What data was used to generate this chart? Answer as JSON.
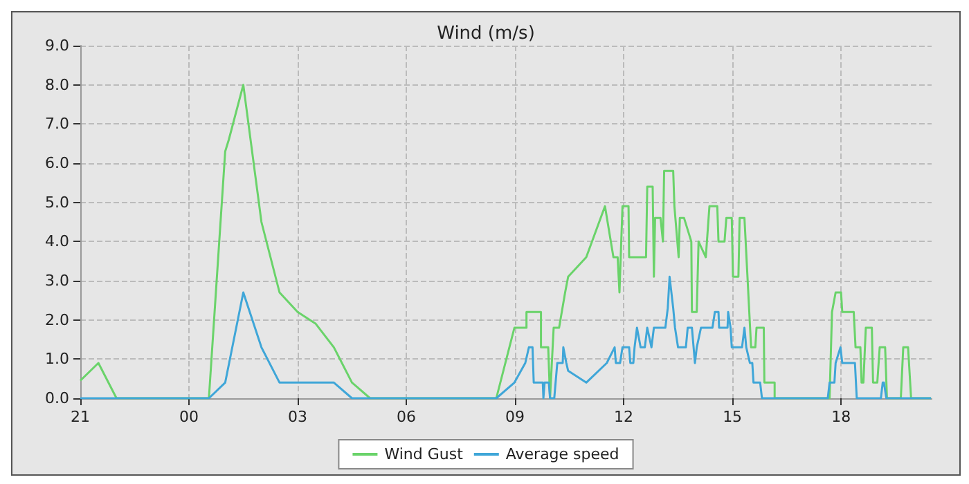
{
  "chart_data": {
    "type": "line",
    "title": "Wind (m/s)",
    "xlim": [
      "--01-01T21:00",
      "--01-02T20:30"
    ],
    "ylim": [
      0,
      9
    ],
    "xticks": [
      {
        "value": "--01-01T21:00",
        "label": "21"
      },
      {
        "value": "--01-02T00:00",
        "label": "00"
      },
      {
        "value": "--01-02T03:00",
        "label": "03"
      },
      {
        "value": "--01-02T06:00",
        "label": "06"
      },
      {
        "value": "--01-02T09:00",
        "label": "09"
      },
      {
        "value": "--01-02T12:00",
        "label": "12"
      },
      {
        "value": "--01-02T15:00",
        "label": "15"
      },
      {
        "value": "--01-02T18:00",
        "label": "18"
      }
    ],
    "yticks": [
      {
        "value": 0,
        "label": "0.0"
      },
      {
        "value": 1,
        "label": "1.0"
      },
      {
        "value": 2,
        "label": "2.0"
      },
      {
        "value": 3,
        "label": "3.0"
      },
      {
        "value": 4,
        "label": "4.0"
      },
      {
        "value": 5,
        "label": "5.0"
      },
      {
        "value": 6,
        "label": "6.0"
      },
      {
        "value": 7,
        "label": "7.0"
      },
      {
        "value": 8,
        "label": "8.0"
      },
      {
        "value": 9,
        "label": "9.0"
      }
    ],
    "grid": true,
    "legend": "bottom",
    "marker": "none",
    "line_style": "solid",
    "series": [
      {
        "name": "Wind Gust",
        "color": "#6ad36a",
        "x": [
          "--01-01T21:00",
          "--01-01T21:30",
          "--01-01T22:00",
          "--01-02T00:33",
          "--01-02T01:00",
          "--01-02T01:06",
          "--01-02T01:30",
          "--01-02T02:00",
          "--01-02T02:30",
          "--01-02T03:00",
          "--01-02T03:30",
          "--01-02T04:00",
          "--01-02T04:30",
          "--01-02T05:00",
          "--01-02T08:29",
          "--01-02T08:59",
          "--01-02T09:19",
          "--01-02T09:19",
          "--01-02T09:43",
          "--01-02T09:43",
          "--01-02T09:55",
          "--01-02T09:58",
          "--01-02T10:04",
          "--01-02T10:13",
          "--01-02T10:23",
          "--01-02T10:28",
          "--01-02T10:58",
          "--01-02T11:29",
          "--01-02T11:43",
          "--01-02T11:50",
          "--01-02T11:53",
          "--01-02T11:58",
          "--01-02T12:08",
          "--01-02T12:09",
          "--01-02T12:37",
          "--01-02T12:39",
          "--01-02T12:48",
          "--01-02T12:50",
          "--01-02T12:52",
          "--01-02T13:01",
          "--01-02T13:05",
          "--01-02T13:07",
          "--01-02T13:22",
          "--01-02T13:24",
          "--01-02T13:31",
          "--01-02T13:33",
          "--01-02T13:40",
          "--01-02T13:52",
          "--01-02T13:53",
          "--01-02T14:01",
          "--01-02T14:04",
          "--01-02T14:16",
          "--01-02T14:22",
          "--01-02T14:35",
          "--01-02T14:37",
          "--01-02T14:47",
          "--01-02T14:50",
          "--01-02T14:59",
          "--01-02T15:01",
          "--01-02T15:10",
          "--01-02T15:12",
          "--01-02T15:20",
          "--01-02T15:31",
          "--01-02T15:38",
          "--01-02T15:40",
          "--01-02T15:52",
          "--01-02T15:53",
          "--01-02T16:10",
          "--01-02T16:10",
          "--01-02T17:41",
          "--01-02T17:45",
          "--01-02T17:51",
          "--01-02T18:00",
          "--01-02T18:02",
          "--01-02T18:21",
          "--01-02T18:24",
          "--01-02T18:32",
          "--01-02T18:34",
          "--01-02T18:37",
          "--01-02T18:41",
          "--01-02T18:51",
          "--01-02T18:53",
          "--01-02T19:00",
          "--01-02T19:04",
          "--01-02T19:13",
          "--01-02T19:16",
          "--01-02T19:39",
          "--01-02T19:43",
          "--01-02T19:51",
          "--01-02T19:56",
          "--01-02T20:29"
        ],
        "values": [
          0.45,
          0.9,
          0,
          0,
          6.3,
          6.6,
          8,
          4.5,
          2.7,
          2.2,
          1.9,
          1.3,
          0.4,
          0,
          0,
          1.8,
          1.8,
          2.2,
          2.2,
          1.3,
          1.3,
          0,
          1.8,
          1.8,
          2.7,
          3.1,
          3.6,
          4.9,
          3.6,
          3.6,
          2.7,
          4.9,
          4.9,
          3.6,
          3.6,
          5.4,
          5.4,
          3.1,
          4.6,
          4.6,
          4,
          5.8,
          5.8,
          4.9,
          3.6,
          4.6,
          4.6,
          4,
          2.2,
          2.2,
          4,
          3.6,
          4.9,
          4.9,
          4,
          4,
          4.6,
          4.6,
          3.1,
          3.1,
          4.6,
          4.6,
          1.3,
          1.3,
          1.8,
          1.8,
          0.4,
          0.4,
          0,
          0,
          2.2,
          2.7,
          2.7,
          2.2,
          2.2,
          1.3,
          1.3,
          0.4,
          0.4,
          1.8,
          1.8,
          0.4,
          0.4,
          1.3,
          1.3,
          0,
          0,
          1.3,
          1.3,
          0,
          0
        ]
      },
      {
        "name": "Average speed",
        "color": "#3fa6d8",
        "x": [
          "--01-01T21:00",
          "--01-02T00:33",
          "--01-02T01:00",
          "--01-02T01:30",
          "--01-02T02:00",
          "--01-02T02:30",
          "--01-02T04:00",
          "--01-02T04:30",
          "--01-02T08:29",
          "--01-02T08:59",
          "--01-02T09:17",
          "--01-02T09:23",
          "--01-02T09:29",
          "--01-02T09:31",
          "--01-02T09:46",
          "--01-02T09:47",
          "--01-02T09:49",
          "--01-02T09:56",
          "--01-02T09:58",
          "--01-02T10:05",
          "--01-02T10:10",
          "--01-02T10:19",
          "--01-02T10:20",
          "--01-02T10:25",
          "--01-02T10:28",
          "--01-02T10:58",
          "--01-02T11:32",
          "--01-02T11:45",
          "--01-02T11:47",
          "--01-02T11:54",
          "--01-02T11:58",
          "--01-02T12:09",
          "--01-02T12:11",
          "--01-02T12:16",
          "--01-02T12:18",
          "--01-02T12:22",
          "--01-02T12:28",
          "--01-02T12:35",
          "--01-02T12:39",
          "--01-02T12:46",
          "--01-02T12:50",
          "--01-02T13:09",
          "--01-02T13:13",
          "--01-02T13:16",
          "--01-02T13:22",
          "--01-02T13:25",
          "--01-02T13:30",
          "--01-02T13:43",
          "--01-02T13:46",
          "--01-02T13:53",
          "--01-02T13:58",
          "--01-02T14:01",
          "--01-02T14:08",
          "--01-02T14:27",
          "--01-02T14:31",
          "--01-02T14:37",
          "--01-02T14:38",
          "--01-02T14:52",
          "--01-02T14:53",
          "--01-02T14:57",
          "--01-02T14:59",
          "--01-02T15:16",
          "--01-02T15:20",
          "--01-02T15:23",
          "--01-02T15:29",
          "--01-02T15:33",
          "--01-02T15:35",
          "--01-02T15:46",
          "--01-02T15:49",
          "--01-02T17:38",
          "--01-02T17:41",
          "--01-02T17:49",
          "--01-02T17:51",
          "--01-02T17:59",
          "--01-02T18:02",
          "--01-02T18:23",
          "--01-02T18:26",
          "--01-02T19:06",
          "--01-02T19:09",
          "--01-02T19:11",
          "--01-02T19:15",
          "--01-02T20:29"
        ],
        "values": [
          0,
          0,
          0.4,
          2.7,
          1.3,
          0.4,
          0.4,
          0,
          0,
          0.4,
          0.9,
          1.3,
          1.3,
          0.4,
          0.4,
          0,
          0.4,
          0.4,
          0,
          0,
          0.9,
          0.9,
          1.3,
          0.9,
          0.7,
          0.4,
          0.9,
          1.3,
          0.9,
          0.9,
          1.3,
          1.3,
          0.9,
          0.9,
          1.3,
          1.8,
          1.3,
          1.3,
          1.8,
          1.3,
          1.8,
          1.8,
          2.3,
          3.1,
          2.3,
          1.8,
          1.3,
          1.3,
          1.8,
          1.8,
          0.9,
          1.3,
          1.8,
          1.8,
          2.2,
          2.2,
          1.8,
          1.8,
          2.2,
          1.8,
          1.3,
          1.3,
          1.8,
          1.3,
          0.9,
          0.9,
          0.4,
          0.4,
          0,
          0,
          0.4,
          0.4,
          0.9,
          1.3,
          0.9,
          0.9,
          0,
          0,
          0.4,
          0.4,
          0,
          0
        ]
      }
    ]
  }
}
